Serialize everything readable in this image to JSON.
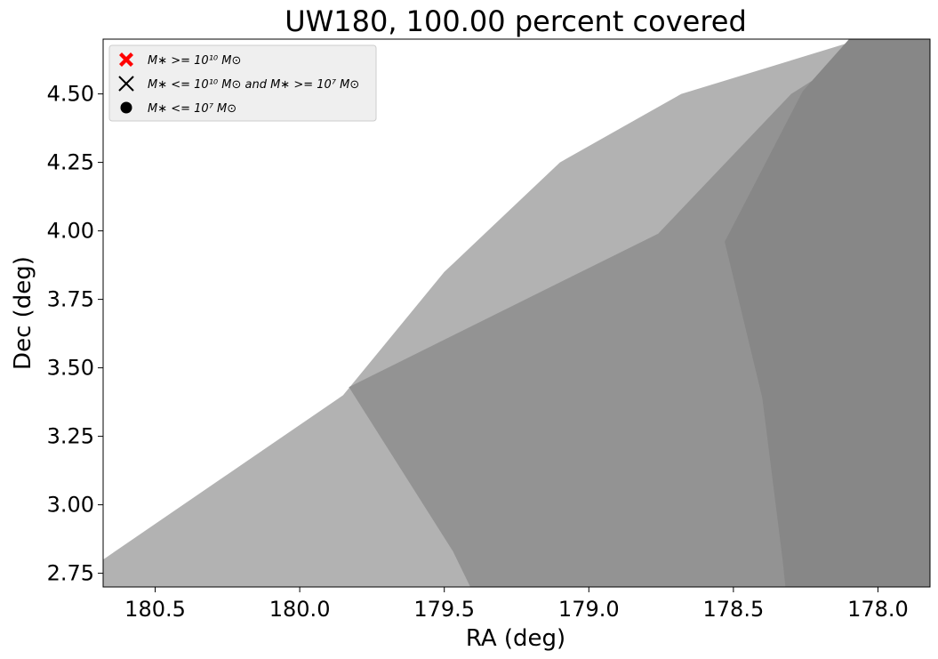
{
  "chart_data": {
    "type": "area",
    "title": "UW180, 100.00 percent covered",
    "xlabel": "RA (deg)",
    "ylabel": "Dec (deg)",
    "xlim": [
      180.68,
      177.82
    ],
    "ylim": [
      2.7,
      4.7
    ],
    "x_inverted": true,
    "grid": false,
    "xticks": [
      180.5,
      180.0,
      179.5,
      179.0,
      178.5,
      178.0
    ],
    "xtick_labels": [
      "180.5",
      "180.0",
      "179.5",
      "179.0",
      "178.5",
      "178.0"
    ],
    "yticks": [
      2.75,
      3.0,
      3.25,
      3.5,
      3.75,
      4.0,
      4.25,
      4.5
    ],
    "ytick_labels": [
      "2.75",
      "3.00",
      "3.25",
      "3.50",
      "3.75",
      "4.00",
      "4.25",
      "4.50"
    ],
    "regions": [
      {
        "fill": "#b2b2b2",
        "vertices": [
          [
            180.68,
            2.7
          ],
          [
            177.82,
            2.7
          ],
          [
            177.82,
            4.7
          ],
          [
            178.06,
            4.7
          ],
          [
            178.68,
            4.5
          ],
          [
            179.1,
            4.25
          ],
          [
            179.5,
            3.85
          ],
          [
            179.85,
            3.4
          ],
          [
            180.68,
            2.8
          ]
        ]
      },
      {
        "fill": "#939393",
        "vertices": [
          [
            179.41,
            2.7
          ],
          [
            179.47,
            2.83
          ],
          [
            179.83,
            3.43
          ],
          [
            178.76,
            3.99
          ],
          [
            178.3,
            4.5
          ],
          [
            178.0,
            4.7
          ],
          [
            177.82,
            4.7
          ],
          [
            177.82,
            2.7
          ]
        ]
      },
      {
        "fill": "#878787",
        "vertices": [
          [
            178.32,
            2.7
          ],
          [
            178.33,
            2.8
          ],
          [
            178.4,
            3.39
          ],
          [
            178.53,
            3.96
          ],
          [
            178.26,
            4.51
          ],
          [
            178.1,
            4.7
          ],
          [
            177.82,
            4.7
          ],
          [
            177.82,
            2.7
          ]
        ]
      }
    ],
    "legend": {
      "placement": "top-left",
      "entries": [
        {
          "label": "M∗ >= 10¹⁰ M⊙",
          "marker": "filled-x",
          "color": "#ff0000"
        },
        {
          "label": "M∗ <= 10¹⁰ M⊙ and M∗ >= 10⁷ M⊙",
          "marker": "x",
          "color": "#000000"
        },
        {
          "label": "M∗ <= 10⁷ M⊙",
          "marker": "circle",
          "color": "#000000"
        }
      ]
    }
  }
}
